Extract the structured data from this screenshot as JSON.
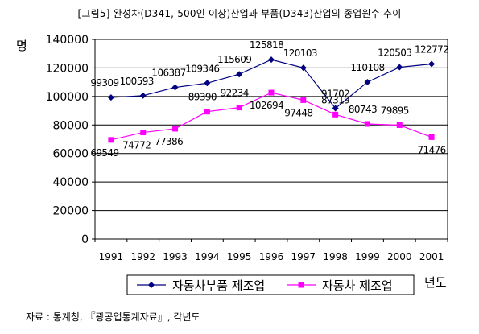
{
  "chart_data": {
    "type": "line",
    "title": "[그림5] 완성차(D341, 500인 이상)산업과 부품(D343)산업의 종업원수 추이",
    "ylabel": "명",
    "xlabel": "년도",
    "ylim": [
      0,
      140000
    ],
    "yticks": [
      "0",
      "20000",
      "40000",
      "60000",
      "80000",
      "100000",
      "120000",
      "140000"
    ],
    "ytick_values": [
      0,
      20000,
      40000,
      60000,
      80000,
      100000,
      120000,
      140000
    ],
    "categories": [
      "1991",
      "1992",
      "1993",
      "1994",
      "1995",
      "1996",
      "1997",
      "1998",
      "1999",
      "2000",
      "2001"
    ],
    "grid": true,
    "legend_position": "bottom",
    "series": [
      {
        "name": "자동차부품 제조업",
        "color": "#000080",
        "marker": "diamond",
        "values": [
          99309,
          100593,
          106387,
          109346,
          115609,
          125818,
          120103,
          91702,
          110108,
          120503,
          122772
        ],
        "labels": [
          "99309",
          "100593",
          "106387",
          "109346",
          "115609",
          "125818",
          "120103",
          "91702",
          "110108",
          "120503",
          "122772"
        ]
      },
      {
        "name": "자동차 제조업",
        "color": "#ff00ff",
        "marker": "square",
        "values": [
          69549,
          74772,
          77386,
          89390,
          92234,
          102694,
          97448,
          87319,
          80743,
          79895,
          71476
        ],
        "labels": [
          "69549",
          "74772",
          "77386",
          "89390",
          "92234",
          "102694",
          "97448",
          "87319",
          "80743",
          "79895",
          "71476"
        ]
      }
    ]
  },
  "source": "자료 : 통계청, 『광공업통계자료』, 각년도"
}
